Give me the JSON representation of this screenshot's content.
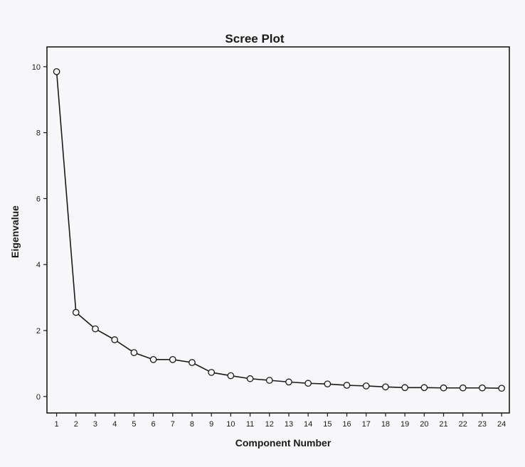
{
  "chart_data": {
    "type": "line",
    "title": "Scree Plot",
    "xlabel": "Component Number",
    "ylabel": "Eigenvalue",
    "x": [
      1,
      2,
      3,
      4,
      5,
      6,
      7,
      8,
      9,
      10,
      11,
      12,
      13,
      14,
      15,
      16,
      17,
      18,
      19,
      20,
      21,
      22,
      23,
      24
    ],
    "x_tick_labels": [
      "1",
      "2",
      "3",
      "4",
      "5",
      "6",
      "7",
      "8",
      "9",
      "10",
      "11",
      "12",
      "13",
      "14",
      "15",
      "16",
      "17",
      "18",
      "19",
      "20",
      "21",
      "22",
      "23",
      "24"
    ],
    "series": [
      {
        "values": [
          9.85,
          2.55,
          2.05,
          1.72,
          1.33,
          1.12,
          1.12,
          1.03,
          0.73,
          0.63,
          0.54,
          0.49,
          0.44,
          0.4,
          0.38,
          0.34,
          0.32,
          0.29,
          0.27,
          0.27,
          0.26,
          0.26,
          0.26,
          0.25
        ]
      }
    ],
    "y_ticks": [
      0,
      2,
      4,
      6,
      8,
      10
    ],
    "y_tick_labels": [
      "0",
      "2",
      "4",
      "6",
      "8",
      "10"
    ],
    "ylim": [
      -0.5,
      10.6
    ],
    "xlim": [
      0.5,
      24.4
    ],
    "grid": false,
    "marker": "open-circle",
    "line_color": "#1a1a1a",
    "background": "#f7f6f8"
  }
}
